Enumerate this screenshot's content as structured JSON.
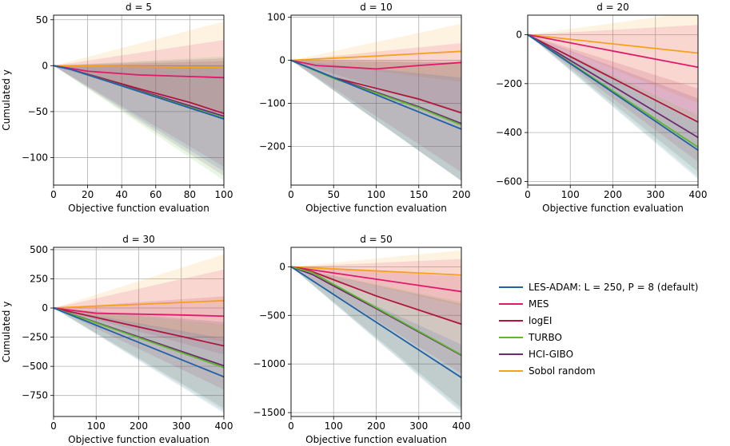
{
  "chart_data": {
    "type": "line",
    "x_axis_label": "Objective function evaluation",
    "y_axis_label": "Cumulated y",
    "legend": [
      {
        "name": "LES-ADAM: L = 250, P = 8 (default)",
        "color": "#1f5fa8"
      },
      {
        "name": "MES",
        "color": "#e0196a"
      },
      {
        "name": "logEI",
        "color": "#b0163c"
      },
      {
        "name": "TURBO",
        "color": "#5cb82c"
      },
      {
        "name": "HCI-GIBO",
        "color": "#6e2a6e"
      },
      {
        "name": "Sobol random",
        "color": "#f7a11a"
      }
    ],
    "panels": [
      {
        "title": "d = 5",
        "xlim": [
          0,
          100
        ],
        "ylim": [
          -130,
          55
        ],
        "xticks": [
          0,
          20,
          40,
          60,
          80,
          100
        ],
        "yticks": [
          50,
          0,
          -50,
          -100
        ],
        "ytick_labels": [
          "50",
          "0",
          "−50",
          "−100"
        ],
        "series": [
          {
            "name": "Sobol random",
            "x": [
              0,
              100
            ],
            "y": [
              0,
              -2
            ],
            "band": [
              [
                0,
                0,
                0
              ],
              [
                100,
                -50,
                48
              ]
            ]
          },
          {
            "name": "MES",
            "x": [
              0,
              20,
              50,
              100
            ],
            "y": [
              0,
              -6,
              -10,
              -13
            ],
            "band": [
              [
                0,
                0,
                0
              ],
              [
                100,
                -55,
                28
              ]
            ]
          },
          {
            "name": "logEI",
            "x": [
              0,
              10,
              50,
              80,
              100
            ],
            "y": [
              0,
              -4,
              -25,
              -40,
              -52
            ],
            "band": [
              [
                0,
                0,
                0
              ],
              [
                100,
                -110,
                5
              ]
            ]
          },
          {
            "name": "HCI-GIBO",
            "x": [
              0,
              10,
              100
            ],
            "y": [
              0,
              -4,
              -55
            ],
            "band": [
              [
                0,
                0,
                0
              ],
              [
                100,
                -120,
                8
              ]
            ]
          },
          {
            "name": "TURBO",
            "x": [
              0,
              10,
              100
            ],
            "y": [
              0,
              -4,
              -57
            ],
            "band": [
              [
                0,
                0,
                0
              ],
              [
                100,
                -125,
                10
              ]
            ]
          },
          {
            "name": "LES-ADAM: L = 250, P = 8 (default)",
            "x": [
              0,
              10,
              100
            ],
            "y": [
              0,
              -4,
              -58
            ],
            "band": [
              [
                0,
                0,
                0
              ],
              [
                100,
                -115,
                0
              ]
            ]
          }
        ]
      },
      {
        "title": "d = 10",
        "xlim": [
          0,
          200
        ],
        "ylim": [
          -290,
          105
        ],
        "xticks": [
          0,
          50,
          100,
          150,
          200
        ],
        "yticks": [
          100,
          0,
          -100,
          -200
        ],
        "ytick_labels": [
          "100",
          "0",
          "−100",
          "−200"
        ],
        "series": [
          {
            "name": "Sobol random",
            "x": [
              0,
              100,
              200
            ],
            "y": [
              0,
              10,
              21
            ],
            "band": [
              [
                0,
                0,
                0
              ],
              [
                200,
                -50,
                85
              ]
            ]
          },
          {
            "name": "MES",
            "x": [
              0,
              30,
              100,
              150,
              200
            ],
            "y": [
              0,
              -12,
              -20,
              -12,
              -5
            ],
            "band": [
              [
                0,
                0,
                0
              ],
              [
                200,
                -125,
                40
              ]
            ]
          },
          {
            "name": "logEI",
            "x": [
              0,
              50,
              150,
              200
            ],
            "y": [
              0,
              -40,
              -90,
              -122
            ],
            "band": [
              [
                0,
                0,
                0
              ],
              [
                200,
                -260,
                0
              ]
            ]
          },
          {
            "name": "HCI-GIBO",
            "x": [
              0,
              50,
              150,
              200
            ],
            "y": [
              0,
              -40,
              -108,
              -147
            ],
            "band": [
              [
                0,
                0,
                0
              ],
              [
                200,
                -280,
                -5
              ]
            ]
          },
          {
            "name": "TURBO",
            "x": [
              0,
              50,
              150,
              200
            ],
            "y": [
              0,
              -42,
              -110,
              -150
            ],
            "band": [
              [
                0,
                0,
                0
              ],
              [
                200,
                -280,
                -5
              ]
            ]
          },
          {
            "name": "LES-ADAM: L = 250, P = 8 (default)",
            "x": [
              0,
              200
            ],
            "y": [
              0,
              -160
            ],
            "band": [
              [
                0,
                0,
                0
              ],
              [
                200,
                -280,
                -40
              ]
            ]
          }
        ]
      },
      {
        "title": "d = 20",
        "xlim": [
          0,
          400
        ],
        "ylim": [
          -615,
          80
        ],
        "xticks": [
          0,
          100,
          200,
          300,
          400
        ],
        "yticks": [
          0,
          -200,
          -400,
          -600
        ],
        "ytick_labels": [
          "0",
          "−200",
          "−400",
          "−600"
        ],
        "series": [
          {
            "name": "Sobol random",
            "x": [
              0,
              400
            ],
            "y": [
              0,
              -75
            ],
            "band": [
              [
                0,
                0,
                0
              ],
              [
                400,
                -280,
                95
              ]
            ]
          },
          {
            "name": "MES",
            "x": [
              0,
              400
            ],
            "y": [
              0,
              -133
            ],
            "band": [
              [
                0,
                0,
                0
              ],
              [
                400,
                -350,
                40
              ]
            ]
          },
          {
            "name": "logEI",
            "x": [
              0,
              400
            ],
            "y": [
              0,
              -357
            ],
            "band": [
              [
                0,
                0,
                0
              ],
              [
                400,
                -520,
                -220
              ]
            ]
          },
          {
            "name": "HCI-GIBO",
            "x": [
              0,
              400
            ],
            "y": [
              0,
              -420
            ],
            "band": [
              [
                0,
                0,
                0
              ],
              [
                400,
                -560,
                -260
              ]
            ]
          },
          {
            "name": "TURBO",
            "x": [
              0,
              400
            ],
            "y": [
              0,
              -460
            ],
            "band": [
              [
                0,
                0,
                0
              ],
              [
                400,
                -580,
                -330
              ]
            ]
          },
          {
            "name": "LES-ADAM: L = 250, P = 8 (default)",
            "x": [
              0,
              400
            ],
            "y": [
              0,
              -472
            ],
            "band": [
              [
                0,
                0,
                0
              ],
              [
                400,
                -590,
                -360
              ]
            ]
          }
        ]
      },
      {
        "title": "d = 30",
        "xlim": [
          0,
          400
        ],
        "ylim": [
          -930,
          520
        ],
        "xticks": [
          0,
          100,
          200,
          300,
          400
        ],
        "yticks": [
          500,
          250,
          0,
          -250,
          -500,
          -750
        ],
        "ytick_labels": [
          "500",
          "250",
          "0",
          "−250",
          "−500",
          "−750"
        ],
        "series": [
          {
            "name": "Sobol random",
            "x": [
              0,
              400
            ],
            "y": [
              0,
              63
            ],
            "band": [
              [
                0,
                0,
                0
              ],
              [
                400,
                -290,
                460
              ]
            ]
          },
          {
            "name": "MES",
            "x": [
              0,
              100,
              300,
              400
            ],
            "y": [
              0,
              -45,
              -60,
              -70
            ],
            "band": [
              [
                0,
                0,
                0
              ],
              [
                400,
                -400,
                330
              ]
            ]
          },
          {
            "name": "logEI",
            "x": [
              0,
              400
            ],
            "y": [
              0,
              -325
            ],
            "band": [
              [
                0,
                0,
                0
              ],
              [
                400,
                -700,
                100
              ]
            ]
          },
          {
            "name": "HCI-GIBO",
            "x": [
              0,
              400
            ],
            "y": [
              0,
              -495
            ],
            "band": [
              [
                0,
                0,
                0
              ],
              [
                400,
                -860,
                -120
              ]
            ]
          },
          {
            "name": "TURBO",
            "x": [
              0,
              400
            ],
            "y": [
              0,
              -510
            ],
            "band": [
              [
                0,
                0,
                0
              ],
              [
                400,
                -880,
                -140
              ]
            ]
          },
          {
            "name": "LES-ADAM: L = 250, P = 8 (default)",
            "x": [
              0,
              400
            ],
            "y": [
              0,
              -590
            ],
            "band": [
              [
                0,
                0,
                0
              ],
              [
                400,
                -900,
                -260
              ]
            ]
          }
        ]
      },
      {
        "title": "d = 50",
        "xlim": [
          0,
          400
        ],
        "ylim": [
          -1540,
          200
        ],
        "xticks": [
          0,
          100,
          200,
          300,
          400
        ],
        "yticks": [
          0,
          -500,
          -1000,
          -1500
        ],
        "ytick_labels": [
          "0",
          "−500",
          "−1000",
          "−1500"
        ],
        "series": [
          {
            "name": "Sobol random",
            "x": [
              0,
              400
            ],
            "y": [
              0,
              -85
            ],
            "band": [
              [
                0,
                0,
                0
              ],
              [
                400,
                -400,
                170
              ]
            ]
          },
          {
            "name": "MES",
            "x": [
              0,
              400
            ],
            "y": [
              0,
              -255
            ],
            "band": [
              [
                0,
                0,
                0
              ],
              [
                400,
                -600,
                80
              ]
            ]
          },
          {
            "name": "logEI",
            "x": [
              0,
              50,
              200,
              400
            ],
            "y": [
              0,
              -50,
              -300,
              -590
            ],
            "band": [
              [
                0,
                0,
                0
              ],
              [
                400,
                -1100,
                -100
              ]
            ]
          },
          {
            "name": "HCI-GIBO",
            "x": [
              0,
              50,
              200,
              400
            ],
            "y": [
              0,
              -80,
              -430,
              -910
            ],
            "band": [
              [
                0,
                0,
                0
              ],
              [
                400,
                -1450,
                -380
              ]
            ]
          },
          {
            "name": "TURBO",
            "x": [
              0,
              50,
              200,
              400
            ],
            "y": [
              0,
              -60,
              -420,
              -905
            ],
            "band": [
              [
                0,
                0,
                0
              ],
              [
                400,
                -1480,
                -360
              ]
            ]
          },
          {
            "name": "LES-ADAM: L = 250, P = 8 (default)",
            "x": [
              0,
              400
            ],
            "y": [
              0,
              -1140
            ],
            "band": [
              [
                0,
                0,
                0
              ],
              [
                400,
                -1500,
                -800
              ]
            ]
          }
        ]
      }
    ]
  }
}
